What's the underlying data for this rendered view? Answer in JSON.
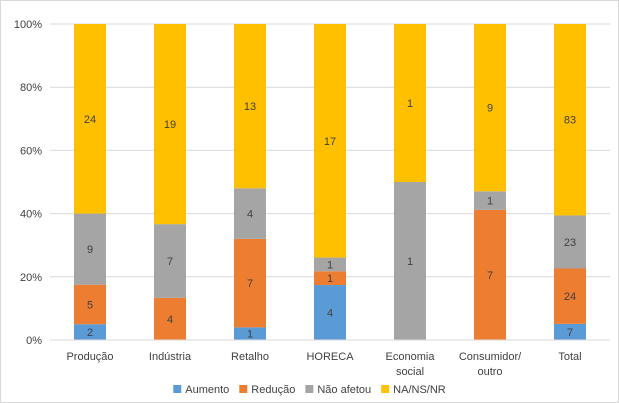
{
  "chart_data": {
    "type": "bar",
    "stacked": "percent",
    "categories": [
      [
        "Produção"
      ],
      [
        "Indústria"
      ],
      [
        "Retalho"
      ],
      [
        "HORECA"
      ],
      [
        "Economia",
        "social"
      ],
      [
        "Consumidor/",
        "outro"
      ],
      [
        "Total"
      ]
    ],
    "series": [
      {
        "name": "Aumento",
        "color": "#5B9BD5",
        "values": [
          2,
          0,
          1,
          4,
          0,
          0,
          7
        ]
      },
      {
        "name": "Redução",
        "color": "#ED7D31",
        "values": [
          5,
          4,
          7,
          1,
          0,
          7,
          24
        ]
      },
      {
        "name": "Não afetou",
        "color": "#A5A5A5",
        "values": [
          9,
          7,
          4,
          1,
          1,
          1,
          23
        ]
      },
      {
        "name": "NA/NS/NR",
        "color": "#FFC000",
        "values": [
          24,
          19,
          13,
          17,
          1,
          9,
          83
        ]
      }
    ],
    "yticks": [
      "0%",
      "20%",
      "40%",
      "60%",
      "80%",
      "100%"
    ],
    "ylim": [
      0,
      100
    ],
    "grid": true,
    "legend": "bottom"
  }
}
